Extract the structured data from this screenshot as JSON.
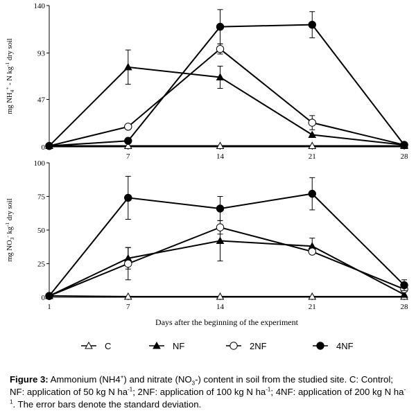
{
  "chart_data": [
    {
      "type": "line",
      "panel": "top",
      "ylabel_parts": [
        "mg NH",
        "4",
        "+",
        " - N kg",
        "-1",
        " dry soil"
      ],
      "ylim": [
        0,
        140
      ],
      "yticks": [
        0,
        47,
        93,
        140
      ],
      "ytick_labels": [
        "0",
        "47",
        "93",
        "140"
      ],
      "x": [
        1,
        7,
        14,
        21,
        28
      ],
      "xtick_labels": [
        "",
        "7",
        "14",
        "21",
        "28"
      ],
      "series": [
        {
          "name": "C",
          "marker": "open-triangle",
          "values": [
            1,
            1,
            1,
            1,
            1
          ],
          "errors": [
            0,
            0,
            0,
            0,
            0
          ]
        },
        {
          "name": "NF",
          "marker": "filled-triangle",
          "values": [
            1,
            79,
            69,
            12,
            2
          ],
          "errors": [
            0,
            17,
            11,
            0,
            0
          ]
        },
        {
          "name": "2NF",
          "marker": "open-circle",
          "values": [
            1,
            20,
            97,
            24,
            2
          ],
          "errors": [
            0,
            0,
            5,
            7,
            0
          ]
        },
        {
          "name": "4NF",
          "marker": "filled-circle",
          "values": [
            1,
            6,
            119,
            121,
            2
          ],
          "errors": [
            0,
            0,
            17,
            13,
            0
          ]
        }
      ]
    },
    {
      "type": "line",
      "panel": "bottom",
      "ylabel_parts": [
        "mg NO",
        "3",
        "-",
        " kg",
        "-1",
        " dry soil"
      ],
      "xlabel": "Days after the beginning of the experiment",
      "ylim": [
        0,
        100
      ],
      "yticks": [
        0,
        25,
        50,
        75,
        100
      ],
      "ytick_labels": [
        "0",
        "25",
        "50",
        "75",
        "100"
      ],
      "x": [
        1,
        7,
        14,
        21,
        28
      ],
      "xtick_labels": [
        "1",
        "7",
        "14",
        "21",
        "28"
      ],
      "series": [
        {
          "name": "C",
          "marker": "open-triangle",
          "values": [
            1,
            0.5,
            0.5,
            0.5,
            0.5
          ],
          "errors": [
            0,
            0,
            0,
            0,
            0
          ]
        },
        {
          "name": "NF",
          "marker": "filled-triangle",
          "values": [
            1,
            29,
            42,
            38,
            2
          ],
          "errors": [
            0,
            8,
            15,
            6,
            0
          ]
        },
        {
          "name": "2NF",
          "marker": "open-circle",
          "values": [
            1,
            25,
            52,
            34,
            6
          ],
          "errors": [
            0,
            12,
            5,
            0,
            0
          ]
        },
        {
          "name": "4NF",
          "marker": "filled-circle",
          "values": [
            1,
            74,
            66,
            77,
            9
          ],
          "errors": [
            0,
            16,
            9,
            12,
            4
          ]
        }
      ]
    }
  ],
  "legend": [
    {
      "label": "C",
      "marker": "open-triangle"
    },
    {
      "label": "NF",
      "marker": "filled-triangle"
    },
    {
      "label": "2NF",
      "marker": "open-circle"
    },
    {
      "label": "4NF",
      "marker": "filled-circle"
    }
  ],
  "caption": {
    "label": "Figure 3:",
    "seg1": " Ammonium (NH4",
    "sup1": "+",
    "seg2": ") and nitrate (NO",
    "sub1": "3",
    "seg3": "-) content in soil from the studied site. C: Control; NF: application of 50 kg N ha",
    "sup2": "-1",
    "seg4": "; 2NF: application of 100 kg N ha",
    "sup3": "-1",
    "seg5": "; 4NF: application of 200 kg N ha",
    "sup4": "-1",
    "seg6": ". The error bars denote the standard deviation."
  }
}
